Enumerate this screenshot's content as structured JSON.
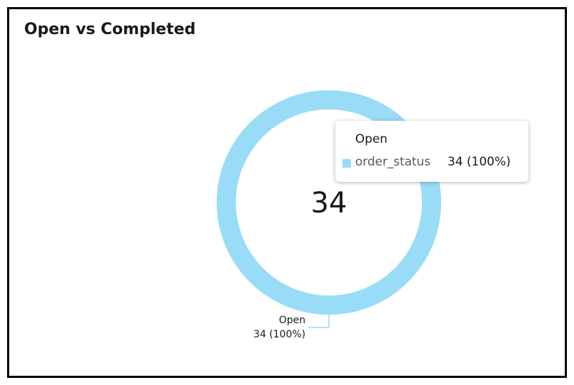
{
  "chart_data": {
    "type": "donut",
    "title": "Open vs Completed",
    "categories": [
      "Open"
    ],
    "series": [
      {
        "name": "order_status",
        "color": "#99dcf8",
        "values": [
          34
        ],
        "value_labels": [
          "34 (100%)"
        ]
      }
    ],
    "total": 34,
    "tooltip": {
      "title": "Open",
      "series_name": "order_status",
      "value_label": "34 (100%)"
    }
  }
}
